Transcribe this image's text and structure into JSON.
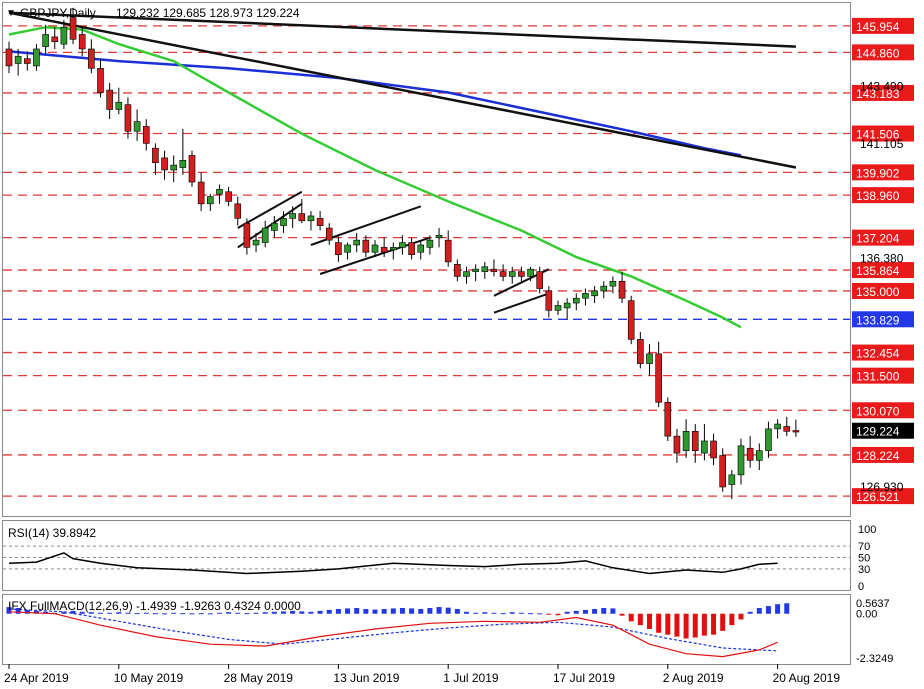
{
  "header": {
    "symbol": "GBPJPY,Daily",
    "ohlc": "129.232 129.685 128.973 129.224"
  },
  "colors": {
    "bull": "#2e9a2e",
    "bear": "#d11f1f",
    "level": "#e03a3a",
    "level_blue": "#2238e6",
    "ma_fast": "#33cc33",
    "ma_slow": "#1b2fd6",
    "trend": "#111111",
    "tag_bg": "#ea1a1a",
    "current_tag_bg": "#000000",
    "rsi": "#000000",
    "macd_main": "#e01010",
    "macd_signal": "#1a33d9"
  },
  "chart_data": [
    {
      "type": "candlestick",
      "title": "GBPJPY,Daily",
      "ylim": [
        125.7,
        146.9
      ],
      "price_labels": [
        "143.490",
        "141.105",
        "136.380",
        "126.930"
      ],
      "levels": [
        {
          "label": "145.954",
          "value": 145.954,
          "color": "red"
        },
        {
          "label": "144.860",
          "value": 144.86,
          "color": "red"
        },
        {
          "label": "143.183",
          "value": 143.183,
          "color": "red"
        },
        {
          "label": "141.506",
          "value": 141.506,
          "color": "red"
        },
        {
          "label": "139.902",
          "value": 139.902,
          "color": "red"
        },
        {
          "label": "138.960",
          "value": 138.96,
          "color": "red"
        },
        {
          "label": "137.204",
          "value": 137.204,
          "color": "red"
        },
        {
          "label": "135.864",
          "value": 135.864,
          "color": "red"
        },
        {
          "label": "135.000",
          "value": 135.0,
          "color": "red"
        },
        {
          "label": "133.829",
          "value": 133.829,
          "color": "blue"
        },
        {
          "label": "132.454",
          "value": 132.454,
          "color": "red"
        },
        {
          "label": "131.500",
          "value": 131.5,
          "color": "red"
        },
        {
          "label": "130.070",
          "value": 130.07,
          "color": "red"
        },
        {
          "label": "128.224",
          "value": 128.224,
          "color": "red"
        },
        {
          "label": "126.521",
          "value": 126.521,
          "color": "red"
        }
      ],
      "current_price": "129.224",
      "x_labels": [
        {
          "label": "24 Apr 2019",
          "index": 0
        },
        {
          "label": "10 May 2019",
          "index": 12
        },
        {
          "label": "28 May 2019",
          "index": 24
        },
        {
          "label": "13 Jun 2019",
          "index": 36
        },
        {
          "label": "1 Jul 2019",
          "index": 48
        },
        {
          "label": "17 Jul 2019",
          "index": 60
        },
        {
          "label": "2 Aug 2019",
          "index": 72
        },
        {
          "label": "20 Aug 2019",
          "index": 84
        }
      ],
      "candles": [
        {
          "o": 145.0,
          "h": 145.3,
          "l": 144.0,
          "c": 144.3
        },
        {
          "o": 144.4,
          "h": 145.0,
          "l": 143.9,
          "c": 144.7
        },
        {
          "o": 144.6,
          "h": 144.9,
          "l": 144.1,
          "c": 144.4
        },
        {
          "o": 144.3,
          "h": 145.2,
          "l": 144.1,
          "c": 145.0
        },
        {
          "o": 145.1,
          "h": 146.0,
          "l": 144.8,
          "c": 145.6
        },
        {
          "o": 145.5,
          "h": 145.9,
          "l": 145.0,
          "c": 145.3
        },
        {
          "o": 145.2,
          "h": 146.2,
          "l": 145.0,
          "c": 145.9
        },
        {
          "o": 146.3,
          "h": 146.7,
          "l": 145.2,
          "c": 145.4
        },
        {
          "o": 145.6,
          "h": 145.9,
          "l": 144.7,
          "c": 145.0
        },
        {
          "o": 145.0,
          "h": 145.4,
          "l": 144.0,
          "c": 144.2
        },
        {
          "o": 144.2,
          "h": 144.6,
          "l": 143.0,
          "c": 143.2
        },
        {
          "o": 143.3,
          "h": 143.6,
          "l": 142.1,
          "c": 142.5
        },
        {
          "o": 142.5,
          "h": 143.4,
          "l": 142.3,
          "c": 142.8
        },
        {
          "o": 142.7,
          "h": 143.0,
          "l": 141.3,
          "c": 141.6
        },
        {
          "o": 141.6,
          "h": 142.5,
          "l": 141.2,
          "c": 142.0
        },
        {
          "o": 141.8,
          "h": 142.1,
          "l": 140.8,
          "c": 141.1
        },
        {
          "o": 140.9,
          "h": 141.1,
          "l": 139.8,
          "c": 140.3
        },
        {
          "o": 140.5,
          "h": 140.8,
          "l": 139.6,
          "c": 140.0
        },
        {
          "o": 140.0,
          "h": 140.6,
          "l": 139.5,
          "c": 140.2
        },
        {
          "o": 140.1,
          "h": 141.7,
          "l": 139.8,
          "c": 140.4
        },
        {
          "o": 140.6,
          "h": 140.8,
          "l": 139.3,
          "c": 139.5
        },
        {
          "o": 139.5,
          "h": 139.9,
          "l": 138.3,
          "c": 138.6
        },
        {
          "o": 138.6,
          "h": 139.0,
          "l": 138.3,
          "c": 138.9
        },
        {
          "o": 139.0,
          "h": 139.4,
          "l": 138.6,
          "c": 139.2
        },
        {
          "o": 139.1,
          "h": 139.3,
          "l": 138.5,
          "c": 138.7
        },
        {
          "o": 138.6,
          "h": 138.9,
          "l": 137.7,
          "c": 138.0
        },
        {
          "o": 137.8,
          "h": 138.0,
          "l": 136.5,
          "c": 136.8
        },
        {
          "o": 136.9,
          "h": 137.4,
          "l": 136.6,
          "c": 137.1
        },
        {
          "o": 137.0,
          "h": 137.9,
          "l": 136.8,
          "c": 137.6
        },
        {
          "o": 137.5,
          "h": 138.1,
          "l": 137.2,
          "c": 137.8
        },
        {
          "o": 137.7,
          "h": 138.3,
          "l": 137.4,
          "c": 138.0
        },
        {
          "o": 138.0,
          "h": 138.5,
          "l": 137.6,
          "c": 138.2
        },
        {
          "o": 138.2,
          "h": 138.8,
          "l": 137.8,
          "c": 137.9
        },
        {
          "o": 137.9,
          "h": 138.3,
          "l": 137.5,
          "c": 138.1
        },
        {
          "o": 138.0,
          "h": 138.3,
          "l": 137.5,
          "c": 137.7
        },
        {
          "o": 137.6,
          "h": 137.8,
          "l": 136.9,
          "c": 137.1
        },
        {
          "o": 137.0,
          "h": 137.3,
          "l": 136.2,
          "c": 136.5
        },
        {
          "o": 136.6,
          "h": 137.0,
          "l": 136.3,
          "c": 136.9
        },
        {
          "o": 136.9,
          "h": 137.4,
          "l": 136.6,
          "c": 137.1
        },
        {
          "o": 137.1,
          "h": 137.3,
          "l": 136.4,
          "c": 136.6
        },
        {
          "o": 136.6,
          "h": 137.1,
          "l": 136.4,
          "c": 136.9
        },
        {
          "o": 136.8,
          "h": 137.2,
          "l": 136.4,
          "c": 136.6
        },
        {
          "o": 136.7,
          "h": 137.0,
          "l": 136.3,
          "c": 136.8
        },
        {
          "o": 136.8,
          "h": 137.3,
          "l": 136.5,
          "c": 137.0
        },
        {
          "o": 137.0,
          "h": 137.2,
          "l": 136.3,
          "c": 136.5
        },
        {
          "o": 136.6,
          "h": 137.1,
          "l": 136.3,
          "c": 136.9
        },
        {
          "o": 136.8,
          "h": 137.3,
          "l": 136.5,
          "c": 137.1
        },
        {
          "o": 137.2,
          "h": 137.6,
          "l": 136.8,
          "c": 137.3
        },
        {
          "o": 137.1,
          "h": 137.5,
          "l": 136.0,
          "c": 136.2
        },
        {
          "o": 136.1,
          "h": 136.3,
          "l": 135.4,
          "c": 135.6
        },
        {
          "o": 135.6,
          "h": 136.0,
          "l": 135.3,
          "c": 135.8
        },
        {
          "o": 135.8,
          "h": 136.1,
          "l": 135.4,
          "c": 135.9
        },
        {
          "o": 135.8,
          "h": 136.2,
          "l": 135.5,
          "c": 136.0
        },
        {
          "o": 135.9,
          "h": 136.3,
          "l": 135.6,
          "c": 135.8
        },
        {
          "o": 135.8,
          "h": 136.1,
          "l": 135.4,
          "c": 135.6
        },
        {
          "o": 135.6,
          "h": 136.0,
          "l": 135.3,
          "c": 135.8
        },
        {
          "o": 135.8,
          "h": 136.0,
          "l": 135.4,
          "c": 135.6
        },
        {
          "o": 135.6,
          "h": 136.0,
          "l": 135.4,
          "c": 135.9
        },
        {
          "o": 135.8,
          "h": 136.0,
          "l": 134.9,
          "c": 135.1
        },
        {
          "o": 135.0,
          "h": 135.2,
          "l": 133.9,
          "c": 134.2
        },
        {
          "o": 134.2,
          "h": 134.6,
          "l": 134.0,
          "c": 134.4
        },
        {
          "o": 134.3,
          "h": 134.7,
          "l": 133.8,
          "c": 134.5
        },
        {
          "o": 134.5,
          "h": 134.9,
          "l": 134.2,
          "c": 134.7
        },
        {
          "o": 134.7,
          "h": 135.1,
          "l": 134.4,
          "c": 134.9
        },
        {
          "o": 134.8,
          "h": 135.2,
          "l": 134.5,
          "c": 135.0
        },
        {
          "o": 135.0,
          "h": 135.4,
          "l": 134.7,
          "c": 135.2
        },
        {
          "o": 135.2,
          "h": 135.6,
          "l": 134.9,
          "c": 135.4
        },
        {
          "o": 135.4,
          "h": 135.8,
          "l": 134.5,
          "c": 134.7
        },
        {
          "o": 134.6,
          "h": 134.8,
          "l": 132.8,
          "c": 133.0
        },
        {
          "o": 133.0,
          "h": 133.3,
          "l": 131.8,
          "c": 132.0
        },
        {
          "o": 132.0,
          "h": 132.8,
          "l": 131.5,
          "c": 132.4
        },
        {
          "o": 132.4,
          "h": 132.9,
          "l": 130.2,
          "c": 130.4
        },
        {
          "o": 130.4,
          "h": 130.6,
          "l": 128.8,
          "c": 129.0
        },
        {
          "o": 129.0,
          "h": 129.3,
          "l": 127.9,
          "c": 128.3
        },
        {
          "o": 128.4,
          "h": 129.7,
          "l": 128.1,
          "c": 129.2
        },
        {
          "o": 129.2,
          "h": 129.5,
          "l": 127.9,
          "c": 128.4
        },
        {
          "o": 128.3,
          "h": 129.5,
          "l": 128.0,
          "c": 128.8
        },
        {
          "o": 128.8,
          "h": 129.1,
          "l": 127.8,
          "c": 128.1
        },
        {
          "o": 128.2,
          "h": 128.5,
          "l": 126.7,
          "c": 126.9
        },
        {
          "o": 127.0,
          "h": 127.6,
          "l": 126.4,
          "c": 127.4
        },
        {
          "o": 127.4,
          "h": 128.9,
          "l": 127.0,
          "c": 128.6
        },
        {
          "o": 128.5,
          "h": 129.0,
          "l": 127.7,
          "c": 128.0
        },
        {
          "o": 128.0,
          "h": 128.7,
          "l": 127.6,
          "c": 128.4
        },
        {
          "o": 128.4,
          "h": 129.6,
          "l": 128.1,
          "c": 129.3
        },
        {
          "o": 129.3,
          "h": 129.7,
          "l": 128.9,
          "c": 129.5
        },
        {
          "o": 129.4,
          "h": 129.8,
          "l": 129.0,
          "c": 129.2
        },
        {
          "o": 129.232,
          "h": 129.685,
          "l": 128.973,
          "c": 129.224
        }
      ],
      "ma_fast": [
        [
          0,
          145.6
        ],
        [
          4,
          145.9
        ],
        [
          8,
          145.8
        ],
        [
          12,
          145.2
        ],
        [
          18,
          144.5
        ],
        [
          24,
          143.2
        ],
        [
          32,
          141.5
        ],
        [
          40,
          140.0
        ],
        [
          48,
          138.7
        ],
        [
          56,
          137.5
        ],
        [
          62,
          136.4
        ],
        [
          68,
          135.6
        ],
        [
          74,
          134.6
        ],
        [
          78,
          133.9
        ],
        [
          80,
          133.5
        ]
      ],
      "ma_slow": [
        [
          0,
          144.9
        ],
        [
          12,
          144.5
        ],
        [
          24,
          144.2
        ],
        [
          36,
          143.8
        ],
        [
          48,
          143.2
        ],
        [
          58,
          142.4
        ],
        [
          68,
          141.6
        ],
        [
          76,
          140.9
        ],
        [
          80,
          140.6
        ]
      ],
      "trendlines": [
        [
          [
            0,
            146.5
          ],
          [
            86,
            145.1
          ]
        ],
        [
          [
            0,
            146.5
          ],
          [
            86,
            140.1
          ]
        ]
      ],
      "channels": [
        [
          [
            25,
            136.8
          ],
          [
            32,
            138.6
          ]
        ],
        [
          [
            25,
            137.6
          ],
          [
            32,
            139.1
          ]
        ],
        [
          [
            34,
            135.7
          ],
          [
            46,
            137.2
          ]
        ],
        [
          [
            33,
            136.9
          ],
          [
            45,
            138.5
          ]
        ],
        [
          [
            53,
            134.1
          ],
          [
            59,
            134.9
          ]
        ],
        [
          [
            53,
            134.8
          ],
          [
            59,
            135.9
          ]
        ]
      ]
    },
    {
      "type": "line",
      "title": "RSI(14) 39.8942",
      "ylim": [
        0,
        100
      ],
      "y_ticks": [
        "100",
        "70",
        "50",
        "30",
        "0"
      ],
      "levels": [
        70,
        50,
        30
      ],
      "values": [
        [
          0,
          40
        ],
        [
          3,
          42
        ],
        [
          6,
          58
        ],
        [
          7,
          48
        ],
        [
          10,
          40
        ],
        [
          14,
          32
        ],
        [
          20,
          28
        ],
        [
          26,
          22
        ],
        [
          32,
          26
        ],
        [
          36,
          30
        ],
        [
          42,
          40
        ],
        [
          48,
          36
        ],
        [
          52,
          34
        ],
        [
          56,
          38
        ],
        [
          60,
          40
        ],
        [
          63,
          44
        ],
        [
          66,
          32
        ],
        [
          70,
          22
        ],
        [
          74,
          28
        ],
        [
          78,
          24
        ],
        [
          80,
          30
        ],
        [
          82,
          38
        ],
        [
          84,
          40
        ]
      ]
    },
    {
      "type": "bar",
      "title": "IFX FullMACD(12,26,9) -1.4939 -1.9263 0.4324 0.0000",
      "ylim": [
        -2.3249,
        0.5637
      ],
      "y_ticks": [
        "0.5637",
        "0.00",
        "-2.3249"
      ],
      "histogram": [
        0.35,
        0.3,
        0.2,
        0.15,
        0.1,
        0.05,
        0.1,
        0.15,
        0.1,
        0.08,
        0.05,
        0.05,
        0.08,
        0.05,
        0.03,
        0.05,
        0.03,
        0.02,
        0.05,
        0.03,
        0.02,
        0.03,
        0.02,
        0.05,
        0.08,
        0.05,
        0.03,
        0.05,
        0.08,
        0.1,
        0.12,
        0.15,
        0.12,
        0.1,
        0.15,
        0.2,
        0.25,
        0.28,
        0.3,
        0.25,
        0.22,
        0.25,
        0.28,
        0.3,
        0.28,
        0.25,
        0.3,
        0.35,
        0.32,
        0.25,
        0.1,
        0.05,
        0.08,
        0.05,
        0.03,
        0.08,
        0.05,
        0.03,
        0.02,
        -0.05,
        -0.08,
        0.1,
        0.15,
        0.2,
        0.25,
        0.3,
        0.28,
        -0.1,
        -0.4,
        -0.6,
        -0.8,
        -1.0,
        -1.1,
        -1.2,
        -1.3,
        -1.25,
        -1.15,
        -1.1,
        -0.9,
        -0.6,
        -0.3,
        0.1,
        0.3,
        0.4,
        0.5,
        0.55
      ],
      "main": [
        [
          0,
          0.1
        ],
        [
          5,
          0.0
        ],
        [
          10,
          -0.6
        ],
        [
          16,
          -1.2
        ],
        [
          22,
          -1.6
        ],
        [
          28,
          -1.7
        ],
        [
          34,
          -1.2
        ],
        [
          40,
          -0.8
        ],
        [
          46,
          -0.5
        ],
        [
          52,
          -0.4
        ],
        [
          58,
          -0.45
        ],
        [
          62,
          -0.2
        ],
        [
          66,
          -0.6
        ],
        [
          70,
          -1.6
        ],
        [
          74,
          -2.1
        ],
        [
          78,
          -2.25
        ],
        [
          82,
          -1.9
        ],
        [
          84,
          -1.5
        ]
      ],
      "signal": [
        [
          0,
          0.25
        ],
        [
          6,
          0.1
        ],
        [
          12,
          -0.4
        ],
        [
          18,
          -0.9
        ],
        [
          24,
          -1.35
        ],
        [
          30,
          -1.6
        ],
        [
          36,
          -1.3
        ],
        [
          42,
          -1.0
        ],
        [
          48,
          -0.75
        ],
        [
          54,
          -0.55
        ],
        [
          60,
          -0.45
        ],
        [
          66,
          -0.7
        ],
        [
          72,
          -1.3
        ],
        [
          78,
          -1.8
        ],
        [
          84,
          -1.95
        ]
      ]
    }
  ]
}
